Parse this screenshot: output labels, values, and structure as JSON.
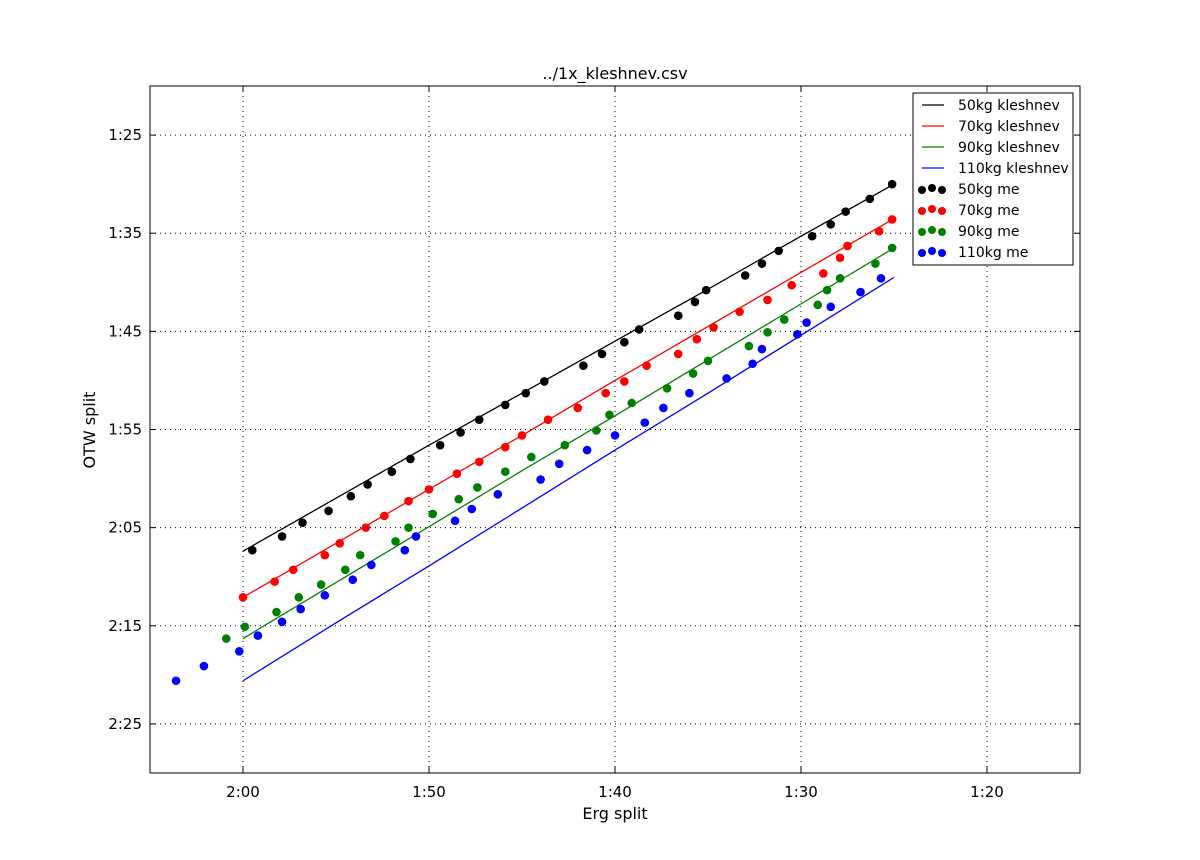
{
  "chart_data": {
    "type": "scatter",
    "title": "../1x_kleshnev.csv",
    "xlabel": "Erg split",
    "ylabel": "OTW split",
    "x_unit": "seconds (shown as m:ss)",
    "xlim": [
      125,
      75
    ],
    "ylim": [
      150,
      80
    ],
    "x_inverted": true,
    "y_inverted": true,
    "grid": true,
    "legend_position": "top-right",
    "x_ticks": [
      {
        "value": 120,
        "label": "2:00"
      },
      {
        "value": 110,
        "label": "1:50"
      },
      {
        "value": 100,
        "label": "1:40"
      },
      {
        "value": 90,
        "label": "1:30"
      },
      {
        "value": 80,
        "label": "1:20"
      }
    ],
    "y_ticks": [
      {
        "value": 85,
        "label": "1:25"
      },
      {
        "value": 95,
        "label": "1:35"
      },
      {
        "value": 105,
        "label": "1:45"
      },
      {
        "value": 115,
        "label": "1:55"
      },
      {
        "value": 125,
        "label": "2:05"
      },
      {
        "value": 135,
        "label": "2:15"
      },
      {
        "value": 145,
        "label": "2:25"
      }
    ],
    "series": [
      {
        "name": "50kg kleshnev",
        "kind": "line",
        "color": "#000000",
        "x": [
          120,
          115,
          110,
          105,
          100,
          95,
          90,
          85
        ],
        "y": [
          127.4,
          122.0,
          116.6,
          111.3,
          106.0,
          100.7,
          95.3,
          90.0
        ]
      },
      {
        "name": "70kg kleshnev",
        "kind": "line",
        "color": "#ff0000",
        "x": [
          120,
          115,
          110,
          105,
          100,
          95,
          90,
          85
        ],
        "y": [
          132.1,
          126.6,
          121.1,
          115.6,
          110.0,
          104.5,
          99.0,
          93.5
        ]
      },
      {
        "name": "90kg kleshnev",
        "kind": "line",
        "color": "#008000",
        "x": [
          120,
          115,
          110,
          105,
          100,
          95,
          90,
          85
        ],
        "y": [
          136.3,
          130.6,
          124.9,
          119.2,
          113.6,
          107.9,
          102.2,
          96.5
        ]
      },
      {
        "name": "110kg kleshnev",
        "kind": "line",
        "color": "#0000ff",
        "x": [
          120,
          115,
          110,
          105,
          100,
          95,
          90,
          85
        ],
        "y": [
          140.6,
          134.7,
          128.9,
          123.0,
          117.1,
          111.3,
          105.4,
          99.5
        ]
      },
      {
        "name": "50kg me",
        "kind": "scatter",
        "color": "#000000",
        "x": [
          119.5,
          117.9,
          116.8,
          115.4,
          114.2,
          113.3,
          112.0,
          111.0,
          109.4,
          108.3,
          107.3,
          105.9,
          104.8,
          103.8,
          101.7,
          100.7,
          99.5,
          98.7,
          96.6,
          95.7,
          95.1,
          93.0,
          92.1,
          91.2,
          89.4,
          88.4,
          87.6,
          86.3,
          85.1
        ],
        "y": [
          127.3,
          125.9,
          124.5,
          123.3,
          121.8,
          120.6,
          119.3,
          118.0,
          116.6,
          115.3,
          114.0,
          112.5,
          111.3,
          110.1,
          108.5,
          107.3,
          106.1,
          104.8,
          103.4,
          102.0,
          100.8,
          99.3,
          98.1,
          96.8,
          95.3,
          94.1,
          92.8,
          91.5,
          90.0
        ]
      },
      {
        "name": "70kg me",
        "kind": "scatter",
        "color": "#ff0000",
        "x": [
          120.0,
          118.3,
          117.3,
          115.6,
          114.8,
          113.4,
          112.4,
          111.1,
          110.0,
          108.5,
          107.3,
          105.9,
          105.0,
          103.6,
          102.0,
          100.5,
          99.5,
          98.3,
          96.6,
          95.6,
          94.7,
          93.3,
          91.8,
          90.5,
          88.8,
          87.9,
          87.5,
          85.8,
          85.1
        ],
        "y": [
          132.1,
          130.5,
          129.3,
          127.8,
          126.6,
          125.0,
          123.8,
          122.3,
          121.1,
          119.5,
          118.3,
          116.8,
          115.6,
          114.0,
          112.8,
          111.3,
          110.1,
          108.5,
          107.3,
          105.8,
          104.6,
          103.0,
          101.8,
          100.3,
          99.1,
          97.5,
          96.3,
          94.8,
          93.6
        ]
      },
      {
        "name": "90kg me",
        "kind": "scatter",
        "color": "#008000",
        "x": [
          120.9,
          119.9,
          118.2,
          117.0,
          115.8,
          114.5,
          113.7,
          111.8,
          111.1,
          109.8,
          108.4,
          107.4,
          105.9,
          104.5,
          102.7,
          101.0,
          100.3,
          99.1,
          97.2,
          95.8,
          95.0,
          92.8,
          91.8,
          90.9,
          89.1,
          88.6,
          87.9,
          86.0,
          85.1
        ],
        "y": [
          136.3,
          135.1,
          133.6,
          132.1,
          130.8,
          129.3,
          127.8,
          126.4,
          125.0,
          123.6,
          122.1,
          120.9,
          119.3,
          117.8,
          116.6,
          115.1,
          113.5,
          112.3,
          110.8,
          109.3,
          108.0,
          106.5,
          105.1,
          103.8,
          102.3,
          100.8,
          99.6,
          98.1,
          96.5
        ]
      },
      {
        "name": "110kg me",
        "kind": "scatter",
        "color": "#0000ff",
        "x": [
          123.6,
          122.1,
          120.2,
          119.2,
          117.9,
          116.9,
          115.6,
          114.1,
          113.1,
          111.3,
          110.7,
          108.6,
          107.7,
          106.3,
          104.0,
          103.0,
          101.5,
          100.0,
          98.4,
          97.4,
          96.0,
          94.0,
          92.6,
          92.1,
          90.2,
          89.7,
          88.4,
          86.8,
          85.7
        ],
        "y": [
          140.6,
          139.1,
          137.6,
          136.0,
          134.6,
          133.3,
          131.9,
          130.3,
          128.8,
          127.3,
          125.9,
          124.3,
          123.1,
          121.6,
          120.1,
          118.5,
          117.1,
          115.6,
          114.3,
          112.8,
          111.3,
          109.8,
          108.3,
          106.8,
          105.3,
          104.1,
          102.5,
          101.0,
          99.6
        ]
      }
    ]
  }
}
